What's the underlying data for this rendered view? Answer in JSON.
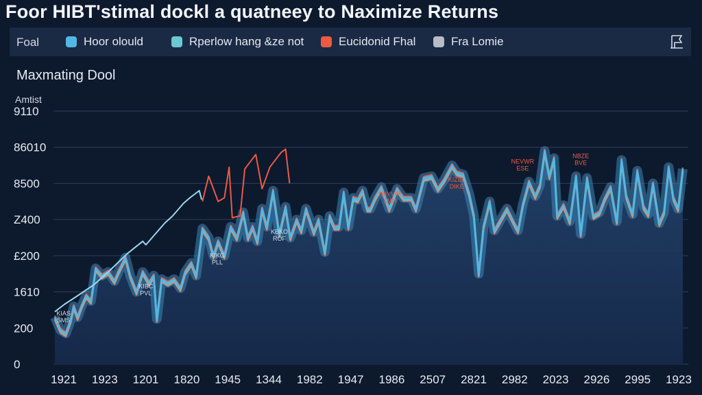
{
  "title": "Foor  HIBT'stimal dockl a quatneey to Naximize Returns",
  "legend": {
    "lead": "Foal",
    "items": [
      {
        "label": "Hoor olould",
        "color": "#4fb8e8"
      },
      {
        "label": "Rperlow hang &ze not",
        "color": "#6cc7d2"
      },
      {
        "label": "Eucidonid Fhal",
        "color": "#ec5a45"
      },
      {
        "label": "Fra Lomie",
        "color": "#b8bcc4"
      }
    ],
    "icon": "flag-icon"
  },
  "subtitle": "Maxmating Dool",
  "chart_data": {
    "type": "line",
    "ylabel": "Amtist",
    "y_ticks": [
      "0",
      "200",
      "1610",
      "£200",
      "Z400",
      "8500",
      "86010",
      "9110"
    ],
    "x_ticks": [
      "1921",
      "1923",
      "1201",
      "1820",
      "1945",
      "1344",
      "1982",
      "1947",
      "1986",
      "2507",
      "2821",
      "2982",
      "2023",
      "2926",
      "2995",
      "1923"
    ],
    "ylim": [
      0,
      7
    ],
    "grid": true,
    "series": [
      {
        "name": "Fra Lomie",
        "color": "#9fd6ec",
        "values": [
          [
            0,
            1.45
          ],
          [
            0.6,
            1.65
          ],
          [
            1.3,
            1.85
          ],
          [
            2.5,
            2.2
          ],
          [
            3.4,
            2.55
          ],
          [
            4.6,
            3.05
          ],
          [
            5.6,
            3.4
          ],
          [
            5.8,
            3.3
          ],
          [
            7.0,
            3.9
          ],
          [
            7.5,
            4.1
          ],
          [
            8.2,
            4.45
          ],
          [
            8.6,
            4.6
          ],
          [
            9.2,
            4.8
          ],
          [
            9.35,
            4.55
          ]
        ]
      },
      {
        "name": "Eucidonid Fhal",
        "color": "#ec5a45",
        "values": [
          [
            9.4,
            4.5
          ],
          [
            9.8,
            5.2
          ],
          [
            10.4,
            4.5
          ],
          [
            10.8,
            4.6
          ],
          [
            11.1,
            5.45
          ],
          [
            11.3,
            4.05
          ],
          [
            11.8,
            4.1
          ],
          [
            12.1,
            5.4
          ],
          [
            12.8,
            5.8
          ],
          [
            13.2,
            4.85
          ],
          [
            13.7,
            5.45
          ],
          [
            14.4,
            5.85
          ],
          [
            14.7,
            5.95
          ],
          [
            14.95,
            5.0
          ]
        ]
      },
      {
        "name": "Hoor olould",
        "color": "#4fb8e8",
        "values": [
          [
            0,
            1.3
          ],
          [
            0.35,
            0.95
          ],
          [
            0.7,
            0.85
          ],
          [
            1.0,
            1.2
          ],
          [
            1.2,
            1.6
          ],
          [
            1.45,
            1.3
          ],
          [
            1.7,
            1.6
          ],
          [
            2.0,
            1.9
          ],
          [
            2.3,
            1.75
          ],
          [
            2.6,
            2.65
          ],
          [
            3.0,
            2.45
          ],
          [
            3.4,
            2.55
          ],
          [
            3.8,
            2.3
          ],
          [
            4.1,
            2.6
          ],
          [
            4.5,
            2.95
          ],
          [
            4.8,
            2.45
          ],
          [
            5.2,
            2.0
          ],
          [
            5.6,
            2.55
          ],
          [
            6.0,
            2.25
          ],
          [
            6.3,
            2.45
          ],
          [
            6.5,
            1.25
          ],
          [
            6.8,
            2.35
          ],
          [
            7.2,
            2.25
          ],
          [
            7.6,
            2.35
          ],
          [
            8.0,
            2.1
          ],
          [
            8.3,
            2.55
          ],
          [
            8.7,
            2.8
          ],
          [
            9.0,
            2.45
          ],
          [
            9.4,
            3.75
          ],
          [
            9.8,
            3.5
          ],
          [
            10.1,
            3.0
          ],
          [
            10.4,
            3.4
          ],
          [
            10.8,
            3.0
          ],
          [
            11.2,
            3.8
          ],
          [
            11.6,
            3.5
          ],
          [
            12.0,
            4.2
          ],
          [
            12.3,
            3.5
          ],
          [
            12.6,
            3.8
          ],
          [
            12.9,
            3.4
          ],
          [
            13.2,
            4.3
          ],
          [
            13.5,
            3.8
          ],
          [
            13.9,
            4.8
          ],
          [
            14.3,
            3.6
          ],
          [
            14.7,
            4.35
          ],
          [
            15.0,
            3.5
          ],
          [
            15.4,
            4.0
          ],
          [
            15.7,
            3.7
          ],
          [
            16.0,
            4.3
          ],
          [
            16.5,
            3.65
          ],
          [
            16.8,
            4.0
          ],
          [
            17.2,
            3.1
          ],
          [
            17.5,
            4.1
          ],
          [
            17.8,
            3.8
          ],
          [
            18.1,
            3.8
          ],
          [
            18.4,
            4.75
          ],
          [
            18.7,
            3.8
          ],
          [
            19.0,
            4.6
          ],
          [
            19.3,
            4.55
          ],
          [
            19.6,
            4.8
          ],
          [
            19.9,
            4.3
          ],
          [
            20.1,
            4.3
          ],
          [
            20.4,
            4.6
          ],
          [
            20.8,
            4.9
          ],
          [
            21.3,
            4.3
          ],
          [
            21.8,
            4.85
          ],
          [
            22.2,
            4.6
          ],
          [
            22.7,
            4.6
          ],
          [
            23.0,
            4.3
          ],
          [
            23.5,
            5.15
          ],
          [
            24.0,
            5.2
          ],
          [
            24.4,
            4.85
          ],
          [
            24.8,
            5.1
          ],
          [
            25.3,
            5.5
          ],
          [
            25.6,
            5.3
          ],
          [
            26.0,
            5.25
          ],
          [
            26.4,
            4.7
          ],
          [
            26.7,
            4.1
          ],
          [
            27.0,
            2.5
          ],
          [
            27.3,
            3.8
          ],
          [
            27.7,
            4.5
          ],
          [
            28.0,
            3.7
          ],
          [
            28.4,
            4.0
          ],
          [
            28.8,
            4.3
          ],
          [
            29.2,
            3.95
          ],
          [
            29.5,
            3.7
          ],
          [
            29.8,
            4.4
          ],
          [
            30.2,
            5.05
          ],
          [
            30.6,
            4.65
          ],
          [
            30.9,
            4.95
          ],
          [
            31.2,
            5.9
          ],
          [
            31.5,
            5.2
          ],
          [
            31.8,
            5.7
          ],
          [
            32.0,
            4.1
          ],
          [
            32.4,
            4.4
          ],
          [
            32.8,
            3.95
          ],
          [
            33.2,
            5.2
          ],
          [
            33.5,
            3.6
          ],
          [
            33.9,
            5.15
          ],
          [
            34.3,
            4.1
          ],
          [
            34.7,
            4.2
          ],
          [
            35.0,
            4.55
          ],
          [
            35.4,
            4.9
          ],
          [
            35.8,
            3.95
          ],
          [
            36.1,
            5.65
          ],
          [
            36.4,
            4.65
          ],
          [
            36.8,
            4.15
          ],
          [
            37.1,
            5.35
          ],
          [
            37.5,
            4.35
          ],
          [
            37.8,
            4.15
          ],
          [
            38.1,
            5.0
          ],
          [
            38.5,
            3.9
          ],
          [
            38.8,
            4.2
          ],
          [
            39.1,
            5.45
          ],
          [
            39.4,
            4.6
          ],
          [
            39.7,
            4.3
          ],
          [
            40.0,
            5.4
          ]
        ]
      }
    ],
    "annotations": [
      {
        "lines": [
          "KIAS",
          "SMS"
        ],
        "at": [
          0.55,
          1.35
        ],
        "color": "#d9dde4"
      },
      {
        "lines": [
          "KIBC",
          "PVL"
        ],
        "at": [
          5.8,
          2.1
        ],
        "color": "#d9dde4"
      },
      {
        "lines": [
          "KIKG",
          "PLL"
        ],
        "at": [
          10.35,
          2.95
        ],
        "color": "#d9dde4"
      },
      {
        "lines": [
          "KBKO",
          "ROF"
        ],
        "at": [
          14.3,
          3.6
        ],
        "color": "#d9dde4"
      },
      {
        "lines": [
          "NIIYVIR",
          "1MH"
        ],
        "at": [
          21.35,
          4.65
        ],
        "color": "#ec5a45"
      },
      {
        "lines": [
          "KIZEL",
          "DIKE"
        ],
        "at": [
          25.6,
          5.05
        ],
        "color": "#ec5a45"
      },
      {
        "lines": [
          "NEVWR",
          "ESE"
        ],
        "at": [
          29.8,
          5.55
        ],
        "color": "#ec5a45"
      },
      {
        "lines": [
          "NBZE",
          "BVE"
        ],
        "at": [
          33.5,
          5.7
        ],
        "color": "#ec5a45"
      }
    ]
  }
}
